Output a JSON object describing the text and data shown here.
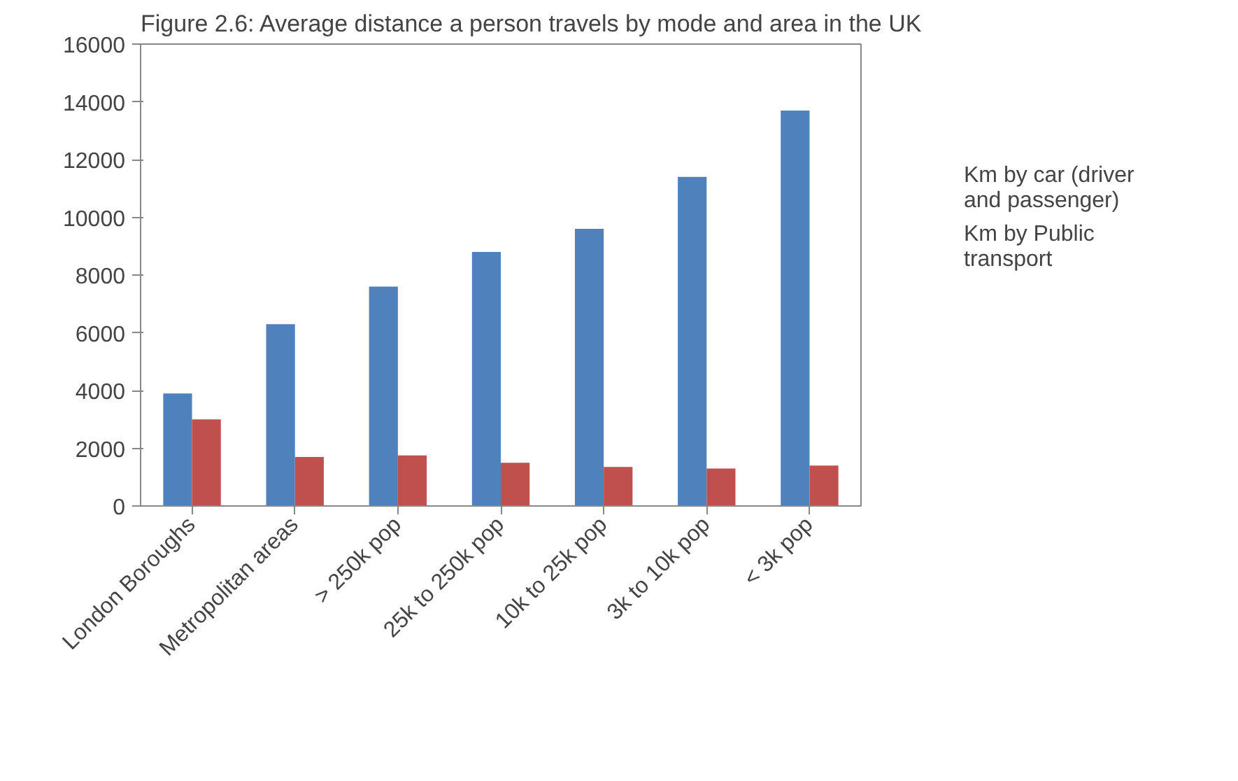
{
  "chart_data": {
    "type": "bar",
    "title": "Figure 2.6: Average distance a person travels by mode and area in the UK",
    "categories": [
      "London Boroughs",
      "Metropolitan areas",
      "> 250k pop",
      "25k to 250k pop",
      "10k to 25k pop",
      "3k to 10k pop",
      "< 3k pop"
    ],
    "series": [
      {
        "name": "Km by car (driver and passenger)",
        "color": "#4f81bd",
        "values": [
          3900,
          6300,
          7600,
          8800,
          9600,
          11400,
          13700
        ]
      },
      {
        "name": "Km by Public transport",
        "color": "#c0504d",
        "values": [
          3000,
          1700,
          1750,
          1500,
          1350,
          1300,
          1400
        ]
      }
    ],
    "ylim": [
      0,
      16000
    ],
    "yticks": [
      0,
      2000,
      4000,
      6000,
      8000,
      10000,
      12000,
      14000,
      16000
    ],
    "grid": false,
    "legend": "right"
  }
}
